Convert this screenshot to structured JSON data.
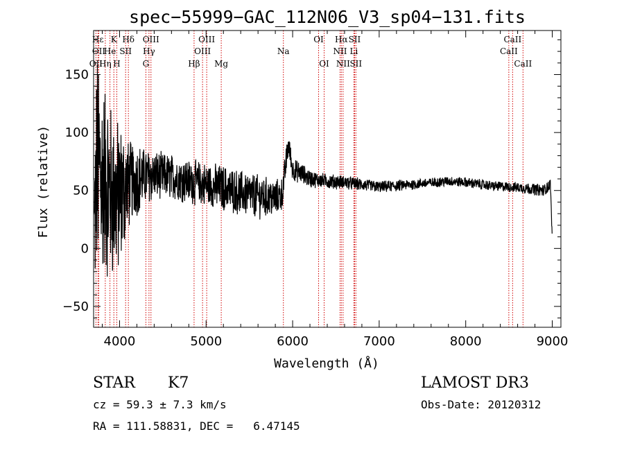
{
  "chart_data": {
    "type": "line",
    "title": "spec−55999−GAC_112N06_V3_sp04−131.fits",
    "xlabel": "Wavelength (Å)",
    "ylabel": "Flux (relative)",
    "xlim": [
      3700,
      9100
    ],
    "ylim": [
      -68,
      188
    ],
    "xticks": [
      {
        "value": 4000,
        "label": "4000"
      },
      {
        "value": 5000,
        "label": "5000"
      },
      {
        "value": 6000,
        "label": "6000"
      },
      {
        "value": 7000,
        "label": "7000"
      },
      {
        "value": 8000,
        "label": "8000"
      },
      {
        "value": 9000,
        "label": "9000"
      }
    ],
    "yticks": [
      {
        "value": -50,
        "label": "−50"
      },
      {
        "value": 0,
        "label": "0"
      },
      {
        "value": 50,
        "label": "50"
      },
      {
        "value": 100,
        "label": "100"
      },
      {
        "value": 150,
        "label": "150"
      }
    ],
    "line_color": "#d00000",
    "spectrum_color": "#000000",
    "spectral_lines": [
      {
        "label": "OII",
        "wavelength": 3727,
        "row": 3
      },
      {
        "label": "Hε",
        "wavelength": 3750,
        "row": 1
      },
      {
        "label": "OII",
        "wavelength": 3760,
        "row": 2
      },
      {
        "label": "Hη",
        "wavelength": 3835,
        "row": 3
      },
      {
        "label": "He",
        "wavelength": 3889,
        "row": 2
      },
      {
        "label": "K",
        "wavelength": 3934,
        "row": 1
      },
      {
        "label": "H",
        "wavelength": 3968,
        "row": 3
      },
      {
        "label": "SII",
        "wavelength": 4070,
        "row": 2
      },
      {
        "label": "Hδ",
        "wavelength": 4102,
        "row": 1
      },
      {
        "label": "G",
        "wavelength": 4304,
        "row": 3
      },
      {
        "label": "Hγ",
        "wavelength": 4340,
        "row": 2
      },
      {
        "label": "OIII",
        "wavelength": 4363,
        "row": 1
      },
      {
        "label": "Hβ",
        "wavelength": 4861,
        "row": 3
      },
      {
        "label": "OIII",
        "wavelength": 4959,
        "row": 2
      },
      {
        "label": "OIII",
        "wavelength": 5007,
        "row": 1
      },
      {
        "label": "Mg",
        "wavelength": 5175,
        "row": 3
      },
      {
        "label": "Na",
        "wavelength": 5893,
        "row": 2
      },
      {
        "label": "OI",
        "wavelength": 6300,
        "row": 1
      },
      {
        "label": "OI",
        "wavelength": 6364,
        "row": 3
      },
      {
        "label": "NII",
        "wavelength": 6548,
        "row": 2
      },
      {
        "label": "Hα",
        "wavelength": 6563,
        "row": 1
      },
      {
        "label": "NII",
        "wavelength": 6583,
        "row": 3
      },
      {
        "label": "Li",
        "wavelength": 6708,
        "row": 2
      },
      {
        "label": "SII",
        "wavelength": 6716,
        "row": 1
      },
      {
        "label": "SII",
        "wavelength": 6731,
        "row": 3
      },
      {
        "label": "CaII",
        "wavelength": 8498,
        "row": 2
      },
      {
        "label": "CaII",
        "wavelength": 8542,
        "row": 1
      },
      {
        "label": "CaII",
        "wavelength": 8662,
        "row": 3
      }
    ],
    "spectrum_anchors": [
      [
        3710,
        10
      ],
      [
        3740,
        75
      ],
      [
        3800,
        62
      ],
      [
        3850,
        55
      ],
      [
        3900,
        48
      ],
      [
        3950,
        42
      ],
      [
        4000,
        45
      ],
      [
        4100,
        55
      ],
      [
        4200,
        60
      ],
      [
        4300,
        62
      ],
      [
        4400,
        63
      ],
      [
        4600,
        62
      ],
      [
        4800,
        58
      ],
      [
        5000,
        55
      ],
      [
        5200,
        52
      ],
      [
        5400,
        48
      ],
      [
        5600,
        45
      ],
      [
        5800,
        43
      ],
      [
        5880,
        47
      ],
      [
        5950,
        90
      ],
      [
        6000,
        68
      ],
      [
        6100,
        65
      ],
      [
        6200,
        60
      ],
      [
        6400,
        58
      ],
      [
        6600,
        57
      ],
      [
        6800,
        55
      ],
      [
        7000,
        53
      ],
      [
        7200,
        54
      ],
      [
        7500,
        56
      ],
      [
        7800,
        58
      ],
      [
        8000,
        57
      ],
      [
        8300,
        54
      ],
      [
        8500,
        53
      ],
      [
        8700,
        52
      ],
      [
        8900,
        50
      ],
      [
        8980,
        55
      ],
      [
        9000,
        5
      ]
    ],
    "noise_envelope": [
      [
        3700,
        90
      ],
      [
        3900,
        70
      ],
      [
        4000,
        60
      ],
      [
        4100,
        35
      ],
      [
        4300,
        22
      ],
      [
        4500,
        18
      ],
      [
        4800,
        17
      ],
      [
        5200,
        18
      ],
      [
        5600,
        17
      ],
      [
        5850,
        14
      ],
      [
        6000,
        9
      ],
      [
        6300,
        6
      ],
      [
        6800,
        5
      ],
      [
        7500,
        4
      ],
      [
        8500,
        4
      ],
      [
        9000,
        5
      ]
    ]
  },
  "info": {
    "object_class": "STAR",
    "subclass": "K7",
    "cz": "cz = 59.3 ± 7.3 km/s",
    "coords": "RA = 111.58831, DEC =   6.47145",
    "survey": "LAMOST DR3",
    "obs_date": "Obs-Date: 20120312"
  }
}
